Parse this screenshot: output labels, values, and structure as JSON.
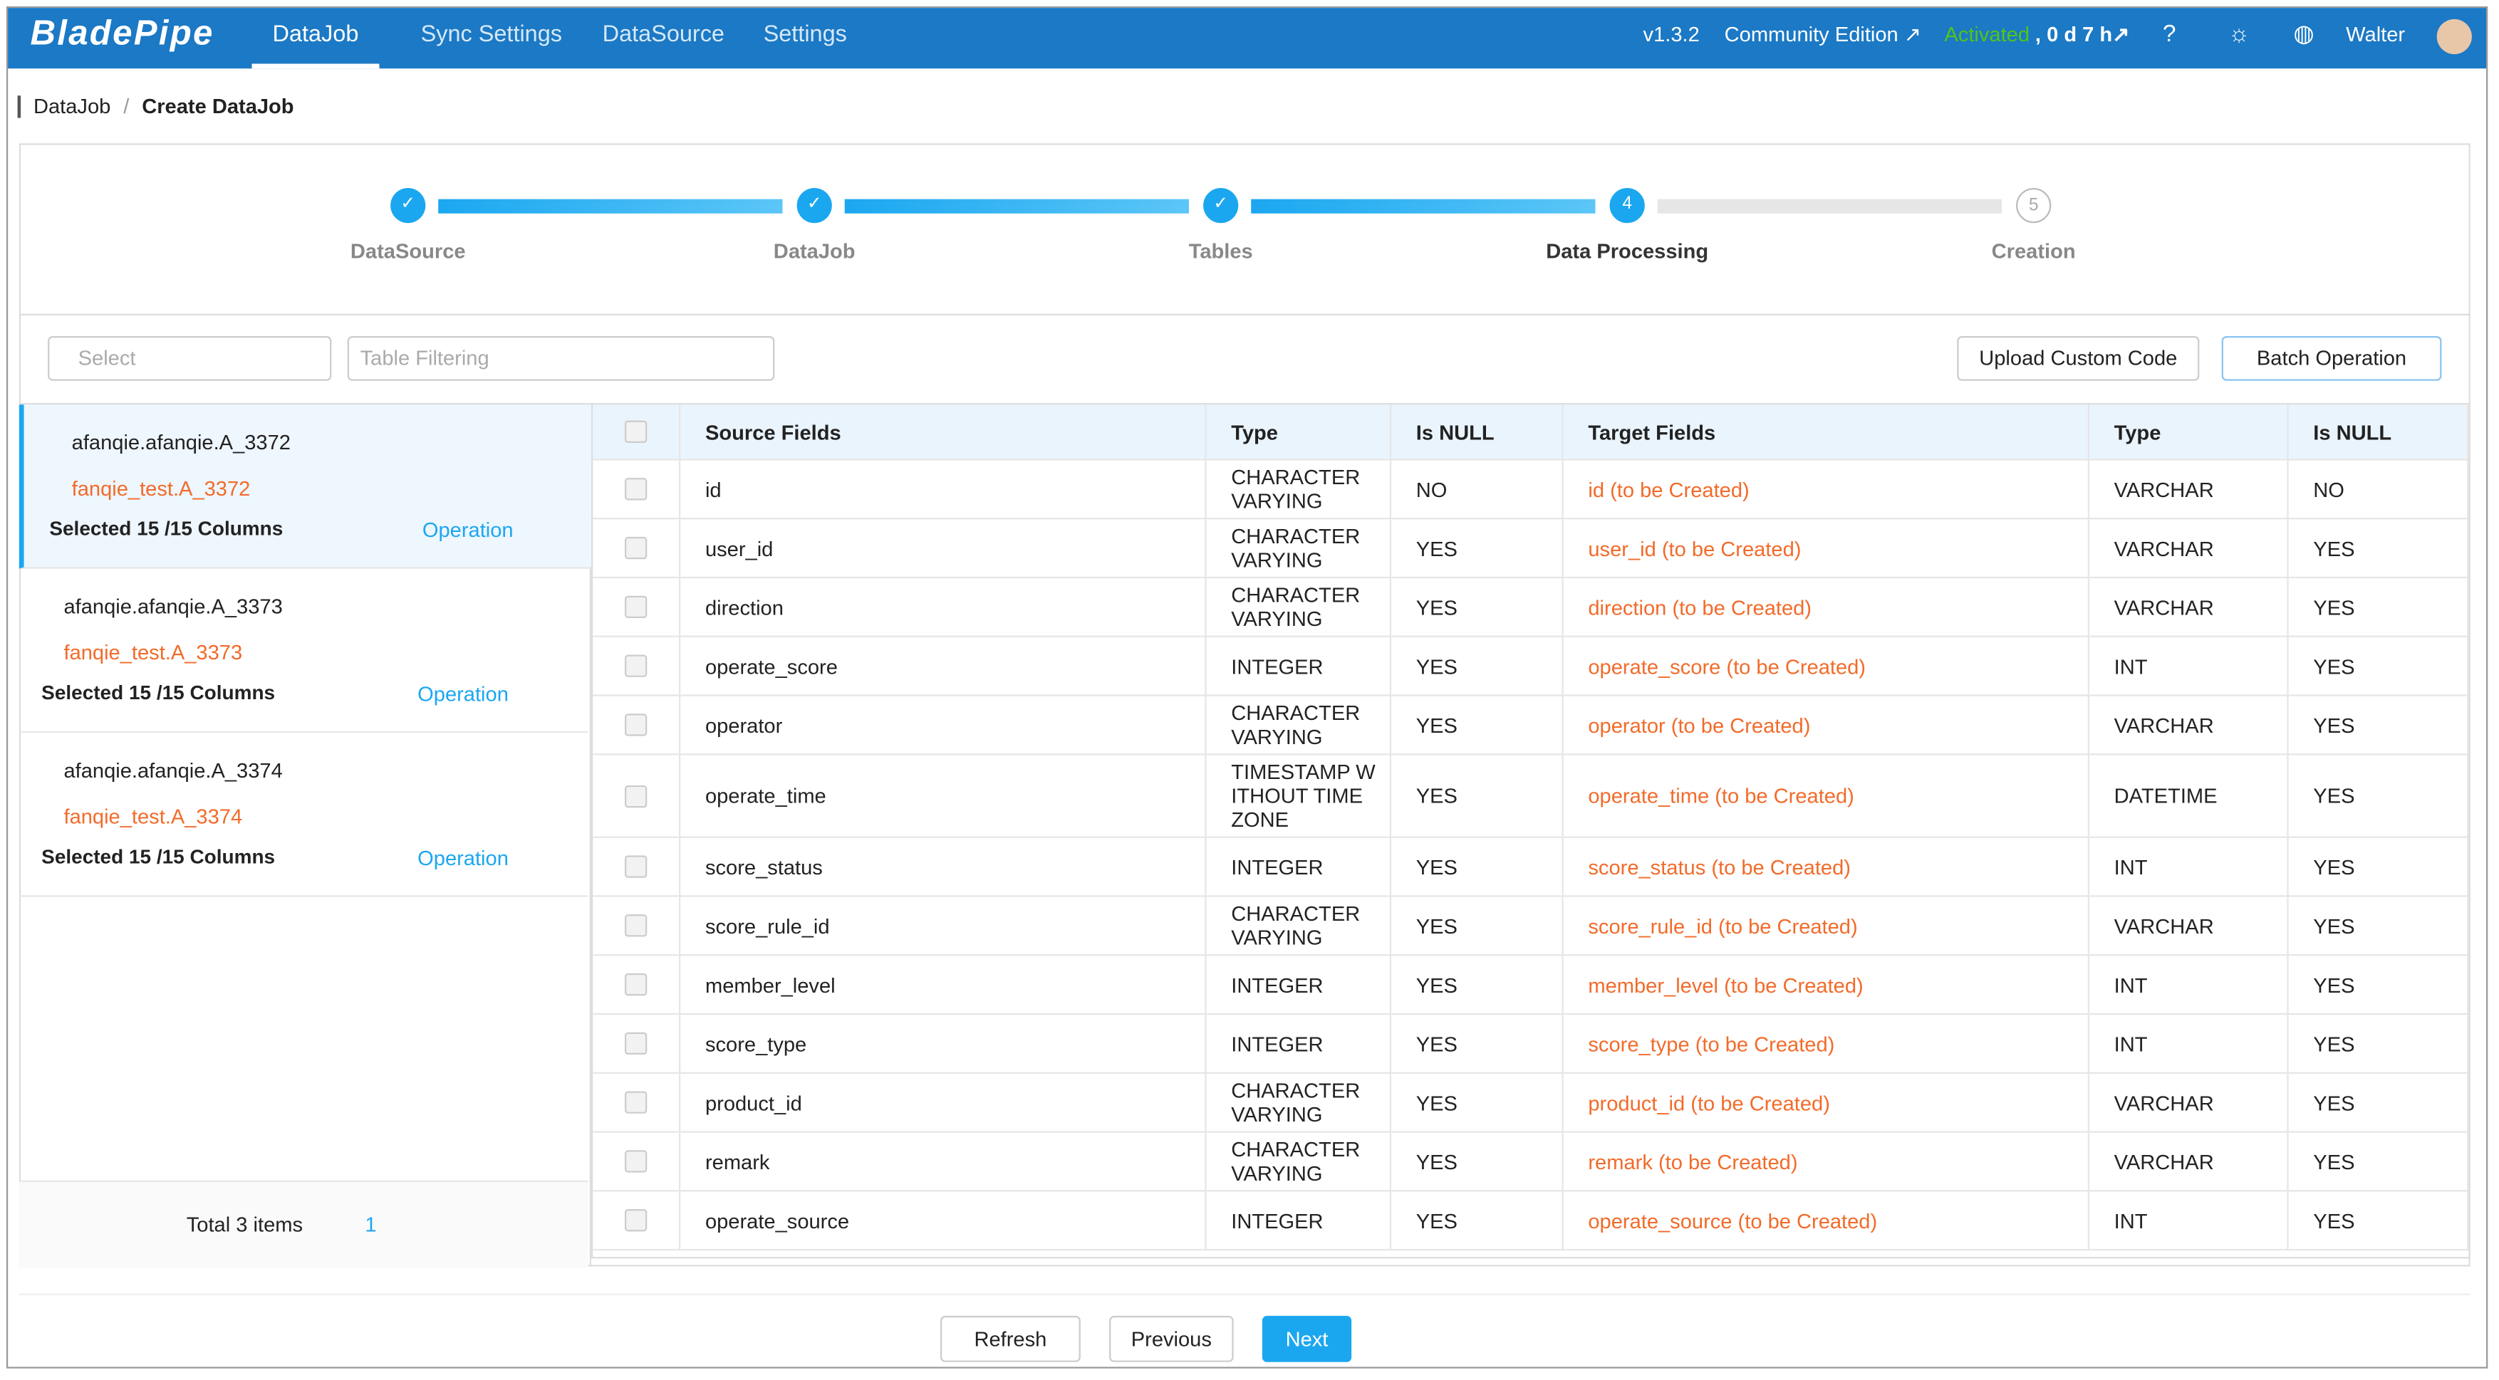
{
  "header": {
    "logo": "BladePipe",
    "nav": [
      "DataJob",
      "Sync Settings",
      "DataSource",
      "Settings"
    ],
    "version": "v1.3.2",
    "edition": "Community Edition ↗",
    "activated": "Activated",
    "remaining": ", 0 d 7 h↗",
    "user": "Walter"
  },
  "breadcrumb": {
    "parent": "DataJob",
    "current": "Create DataJob"
  },
  "steps": [
    {
      "label": "DataSource"
    },
    {
      "label": "DataJob"
    },
    {
      "label": "Tables"
    },
    {
      "number": "4",
      "label": "Data Processing"
    },
    {
      "number": "5",
      "label": "Creation"
    }
  ],
  "filters": {
    "select": "Select",
    "table_filter": "Table Filtering",
    "upload": "Upload Custom Code",
    "batch": "Batch Operation"
  },
  "table_list": {
    "items": [
      {
        "source": "afanqie.afanqie.A_3372",
        "target": "fanqie_test.A_3372",
        "selected": "Selected 15 /15 Columns",
        "operation": "Operation"
      },
      {
        "source": "afanqie.afanqie.A_3373",
        "target": "fanqie_test.A_3373",
        "selected": "Selected 15 /15 Columns",
        "operation": "Operation"
      },
      {
        "source": "afanqie.afanqie.A_3374",
        "target": "fanqie_test.A_3374",
        "selected": "Selected 15 /15 Columns",
        "operation": "Operation"
      }
    ],
    "total": "Total 3 items",
    "page": "1"
  },
  "table": {
    "headers": [
      "Source Fields",
      "Type",
      "Is NULL",
      "Target Fields",
      "Type",
      "Is NULL"
    ],
    "rows": [
      [
        "id",
        "CHARACTER VARYING",
        "NO",
        "id (to be Created)",
        "VARCHAR",
        "NO"
      ],
      [
        "user_id",
        "CHARACTER VARYING",
        "YES",
        "user_id (to be Created)",
        "VARCHAR",
        "YES"
      ],
      [
        "direction",
        "CHARACTER VARYING",
        "YES",
        "direction (to be Created)",
        "VARCHAR",
        "YES"
      ],
      [
        "operate_score",
        "INTEGER",
        "YES",
        "operate_score (to be Created)",
        "INT",
        "YES"
      ],
      [
        "operator",
        "CHARACTER VARYING",
        "YES",
        "operator (to be Created)",
        "VARCHAR",
        "YES"
      ],
      [
        "operate_time",
        "TIMESTAMP WITHOUT TIME ZONE",
        "YES",
        "operate_time (to be Created)",
        "DATETIME",
        "YES"
      ],
      [
        "score_status",
        "INTEGER",
        "YES",
        "score_status (to be Created)",
        "INT",
        "YES"
      ],
      [
        "score_rule_id",
        "CHARACTER VARYING",
        "YES",
        "score_rule_id (to be Created)",
        "VARCHAR",
        "YES"
      ],
      [
        "member_level",
        "INTEGER",
        "YES",
        "member_level (to be Created)",
        "INT",
        "YES"
      ],
      [
        "score_type",
        "INTEGER",
        "YES",
        "score_type (to be Created)",
        "INT",
        "YES"
      ],
      [
        "product_id",
        "CHARACTER VARYING",
        "YES",
        "product_id (to be Created)",
        "VARCHAR",
        "YES"
      ],
      [
        "remark",
        "CHARACTER VARYING",
        "YES",
        "remark (to be Created)",
        "VARCHAR",
        "YES"
      ],
      [
        "operate_source",
        "INTEGER",
        "YES",
        "operate_source (to be Created)",
        "INT",
        "YES"
      ]
    ]
  },
  "footer": {
    "refresh": "Refresh",
    "previous": "Previous",
    "next": "Next"
  }
}
